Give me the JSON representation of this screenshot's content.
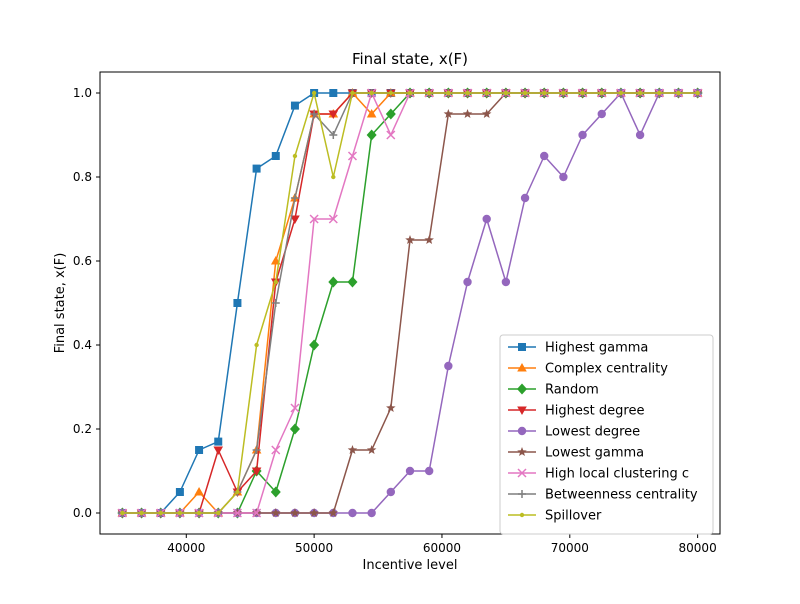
{
  "chart_data": {
    "type": "line",
    "title": "Final state, x(F)",
    "xlabel": "Incentive level",
    "ylabel": "Final state, x(F)",
    "xlim": [
      33250,
      81750
    ],
    "ylim": [
      -0.05,
      1.05
    ],
    "xticks": [
      40000,
      50000,
      60000,
      70000,
      80000
    ],
    "yticks": [
      0.0,
      0.2,
      0.4,
      0.6,
      0.8,
      1.0
    ],
    "xtick_labels": [
      "40000",
      "50000",
      "60000",
      "70000",
      "80000"
    ],
    "ytick_labels": [
      "0.0",
      "0.2",
      "0.4",
      "0.6",
      "0.8",
      "1.0"
    ],
    "grid": false,
    "legend_position": "lower-right",
    "x": [
      35000,
      36500,
      38000,
      39500,
      41000,
      42500,
      44000,
      45500,
      47000,
      48500,
      50000,
      51500,
      53000,
      54500,
      56000,
      57500,
      59000,
      60500,
      62000,
      63500,
      65000,
      66500,
      68000,
      69500,
      71000,
      72500,
      74000,
      75500,
      77000,
      78500,
      80000
    ],
    "series": [
      {
        "name": "Highest gamma",
        "color": "#1f77b4",
        "marker": "square",
        "values": [
          0,
          0,
          0,
          0.05,
          0.15,
          0.17,
          0.5,
          0.82,
          0.85,
          0.97,
          1,
          1,
          1,
          1,
          1,
          1,
          1,
          1,
          1,
          1,
          1,
          1,
          1,
          1,
          1,
          1,
          1,
          1,
          1,
          1,
          1
        ]
      },
      {
        "name": "Complex centrality",
        "color": "#ff7f0e",
        "marker": "triangle-up",
        "values": [
          0,
          0,
          0,
          0,
          0.05,
          0,
          0.05,
          0.15,
          0.6,
          0.75,
          0.95,
          0.95,
          1,
          0.95,
          1,
          1,
          1,
          1,
          1,
          1,
          1,
          1,
          1,
          1,
          1,
          1,
          1,
          1,
          1,
          1,
          1
        ]
      },
      {
        "name": "Random",
        "color": "#2ca02c",
        "marker": "diamond",
        "values": [
          0,
          0,
          0,
          0,
          0,
          0,
          0,
          0.1,
          0.05,
          0.2,
          0.4,
          0.55,
          0.55,
          0.9,
          0.95,
          1,
          1,
          1,
          1,
          1,
          1,
          1,
          1,
          1,
          1,
          1,
          1,
          1,
          1,
          1,
          1
        ]
      },
      {
        "name": "Highest degree",
        "color": "#d62728",
        "marker": "triangle-down",
        "values": [
          0,
          0,
          0,
          0,
          0,
          0.15,
          0.05,
          0.1,
          0.55,
          0.7,
          0.95,
          0.95,
          1,
          1,
          1,
          1,
          1,
          1,
          1,
          1,
          1,
          1,
          1,
          1,
          1,
          1,
          1,
          1,
          1,
          1,
          1
        ]
      },
      {
        "name": "Lowest degree",
        "color": "#9467bd",
        "marker": "circle",
        "values": [
          0,
          0,
          0,
          0,
          0,
          0,
          0,
          0,
          0,
          0,
          0,
          0,
          0,
          0,
          0.05,
          0.1,
          0.1,
          0.35,
          0.55,
          0.7,
          0.55,
          0.75,
          0.85,
          0.8,
          0.9,
          0.95,
          1,
          0.9,
          1,
          1,
          1
        ]
      },
      {
        "name": "Lowest gamma",
        "color": "#8c564b",
        "marker": "star",
        "values": [
          0,
          0,
          0,
          0,
          0,
          0,
          0,
          0,
          0,
          0,
          0,
          0,
          0.15,
          0.15,
          0.25,
          0.65,
          0.65,
          0.95,
          0.95,
          0.95,
          1,
          1,
          1,
          1,
          1,
          1,
          1,
          1,
          1,
          1,
          1
        ]
      },
      {
        "name": "High local clustering c",
        "color": "#e377c2",
        "marker": "x",
        "values": [
          0,
          0,
          0,
          0,
          0,
          0,
          0,
          0,
          0.15,
          0.25,
          0.7,
          0.7,
          0.85,
          1,
          0.9,
          1,
          1,
          1,
          1,
          1,
          1,
          1,
          1,
          1,
          1,
          1,
          1,
          1,
          1,
          1,
          1
        ]
      },
      {
        "name": "Betweenness centrality",
        "color": "#7f7f7f",
        "marker": "plus",
        "values": [
          0,
          0,
          0,
          0,
          0,
          0,
          0.05,
          0.15,
          0.5,
          0.75,
          0.95,
          0.9,
          1,
          1,
          1,
          1,
          1,
          1,
          1,
          1,
          1,
          1,
          1,
          1,
          1,
          1,
          1,
          1,
          1,
          1,
          1
        ]
      },
      {
        "name": "Spillover",
        "color": "#bcbd22",
        "marker": "point",
        "values": [
          0,
          0,
          0,
          0,
          0,
          0,
          0.05,
          0.4,
          0.55,
          0.85,
          1,
          0.8,
          1,
          1,
          1,
          1,
          1,
          1,
          1,
          1,
          1,
          1,
          1,
          1,
          1,
          1,
          1,
          1,
          1,
          1,
          1
        ]
      }
    ]
  }
}
